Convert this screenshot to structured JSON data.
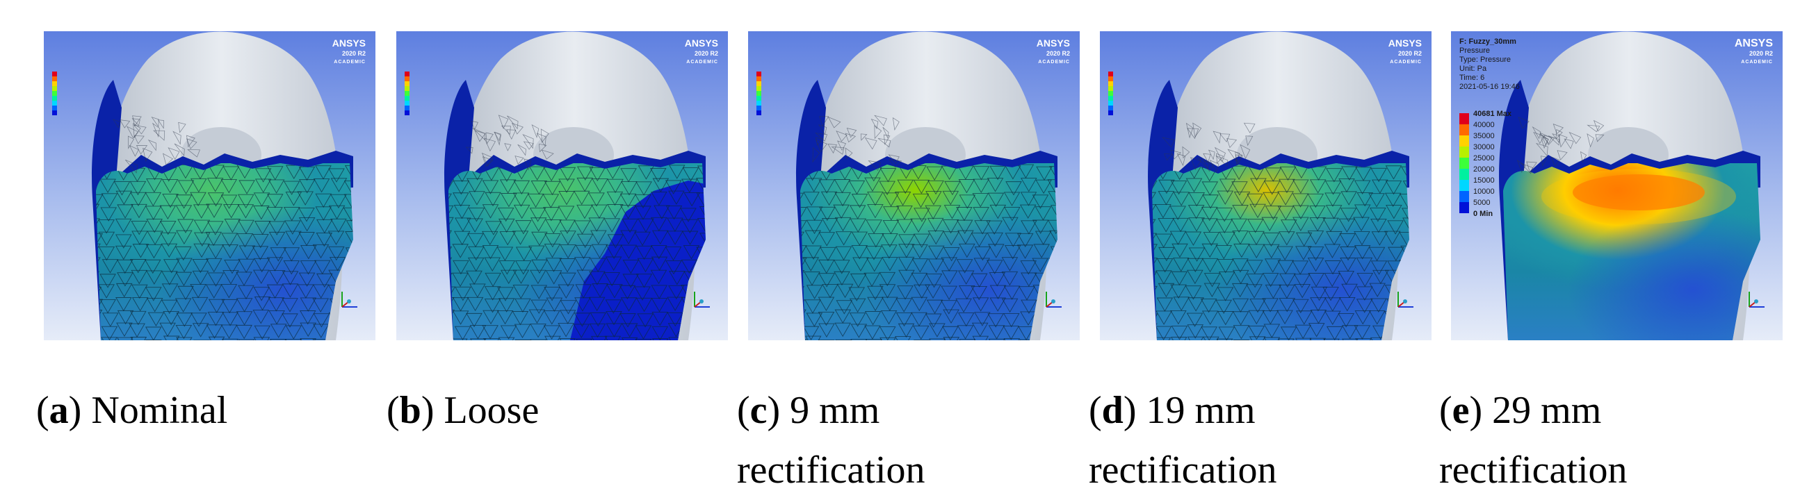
{
  "panels": [
    {
      "id": "a",
      "letter": "a",
      "caption": "Nominal",
      "legend": {
        "title": "",
        "lines": []
      },
      "heat": {
        "hotspot": 0.35,
        "loose_patch": false
      }
    },
    {
      "id": "b",
      "letter": "b",
      "caption": "Loose",
      "legend": {
        "title": "",
        "lines": []
      },
      "heat": {
        "hotspot": 0.3,
        "loose_patch": true
      }
    },
    {
      "id": "c",
      "letter": "c",
      "caption": "9 mm rectification",
      "legend": {
        "title": "",
        "lines": []
      },
      "heat": {
        "hotspot": 0.55,
        "loose_patch": false
      }
    },
    {
      "id": "d",
      "letter": "d",
      "caption": "19 mm rectification",
      "legend": {
        "title": "",
        "lines": []
      },
      "heat": {
        "hotspot": 0.75,
        "loose_patch": false
      }
    },
    {
      "id": "e",
      "letter": "e",
      "caption": "29 mm rectification",
      "legend": {
        "title": "F: Fuzzy_30mm",
        "lines": [
          "Pressure",
          "Type: Pressure",
          "Unit: Pa",
          "Time: 6",
          "2021-05-16 19:46"
        ],
        "max_label": "40681 Max",
        "min_label": "0 Min",
        "ticks": [
          "40000",
          "35000",
          "30000",
          "25000",
          "20000",
          "15000",
          "10000",
          "5000"
        ]
      },
      "heat": {
        "hotspot": 1.0,
        "loose_patch": false
      }
    }
  ],
  "branding": {
    "ansys": "ANSYS",
    "version": "2020 R2",
    "edition": "ACADEMIC"
  },
  "legend_colors": [
    "#e0001b",
    "#ff6a00",
    "#ffd200",
    "#b8f000",
    "#3dff3a",
    "#00f0a0",
    "#00d7ff",
    "#0064ff",
    "#0010d8"
  ],
  "colors": {
    "sky_top": "#5e7fe0",
    "sky_bottom": "#e6ecf8",
    "liner": "#d6dce4",
    "socket_top": "#0a22a8",
    "tissue": "#1a8aa0"
  }
}
